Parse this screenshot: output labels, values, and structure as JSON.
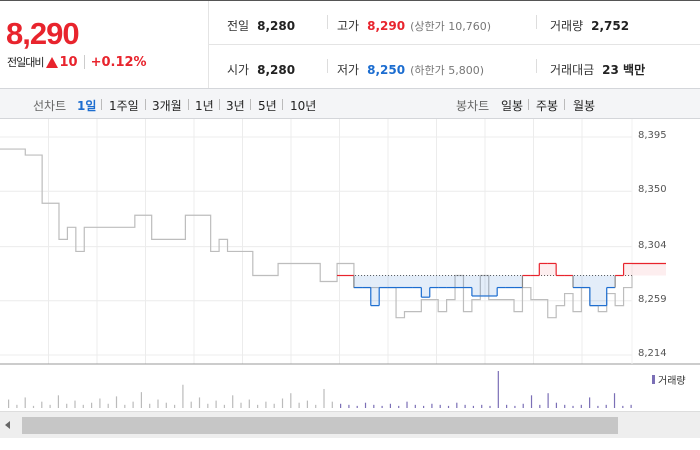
{
  "quote": {
    "price": "8,290",
    "change_label": "전일대비",
    "change_amount": "10",
    "change_percent": "+0.12%",
    "row1": [
      {
        "label": "전일",
        "value": "8,280",
        "sub": "",
        "tone": "normal"
      },
      {
        "label": "고가",
        "value": "8,290",
        "sub": "(상한가 10,760)",
        "tone": "up"
      },
      {
        "label": "거래량",
        "value": "2,752",
        "sub": "",
        "tone": "normal"
      }
    ],
    "row2": [
      {
        "label": "시가",
        "value": "8,280",
        "sub": "",
        "tone": "normal"
      },
      {
        "label": "저가",
        "value": "8,250",
        "sub": "(하한가 5,800)",
        "tone": "down"
      },
      {
        "label": "거래대금",
        "value": "23 백만",
        "sub": "",
        "tone": "normal"
      }
    ]
  },
  "line_chart_bar": {
    "label": "선차트",
    "items": [
      "1일",
      "1주일",
      "3개월",
      "1년",
      "3년",
      "5년",
      "10년"
    ],
    "active_index": 0
  },
  "candle_chart_bar": {
    "label": "봉차트",
    "items": [
      "일봉",
      "주봉",
      "월봉"
    ]
  },
  "colors": {
    "up": "#e8242d",
    "down": "#1c6dd0",
    "history_line": "#bdbdbd",
    "volume": "#7b6fb6"
  },
  "chart_data": {
    "type": "line",
    "reference_price": 8280,
    "y_ticks": [
      8395,
      8350,
      8304,
      8259,
      8214
    ],
    "ylim": [
      8214,
      8395
    ],
    "history_series": {
      "x": [
        0,
        1,
        2,
        3,
        4,
        5,
        6,
        7,
        8,
        9,
        10,
        11,
        12,
        13,
        14,
        15,
        16,
        17,
        18,
        19,
        20,
        21,
        22,
        23,
        24,
        25,
        26,
        27,
        28,
        29,
        30,
        31,
        32,
        33,
        34,
        35,
        36,
        37,
        38,
        39,
        40,
        41,
        42,
        43,
        44,
        45,
        46,
        47,
        48,
        49,
        50,
        51,
        52,
        53,
        54,
        55,
        56,
        57,
        58,
        59,
        60,
        61,
        62,
        63,
        64,
        65,
        66,
        67,
        68,
        69,
        70,
        71,
        72,
        73,
        74,
        75
      ],
      "y": [
        8385,
        8385,
        8385,
        8380,
        8380,
        8340,
        8340,
        8310,
        8320,
        8300,
        8320,
        8320,
        8320,
        8320,
        8320,
        8320,
        8330,
        8330,
        8310,
        8310,
        8310,
        8310,
        8330,
        8330,
        8330,
        8300,
        8310,
        8300,
        8300,
        8300,
        8280,
        8280,
        8280,
        8290,
        8290,
        8290,
        8290,
        8290,
        8275,
        8275,
        8290,
        8290,
        8270,
        8270,
        8270,
        8270,
        8270,
        8245,
        8250,
        8250,
        8260,
        8260,
        8250,
        8260,
        8280,
        8250,
        8260,
        8280,
        8260,
        8260,
        8260,
        8250,
        8270,
        8260,
        8260,
        8245,
        8255,
        8265,
        8250,
        8270,
        8255,
        8250,
        8265,
        8255,
        8270,
        8280
      ]
    },
    "today_series": {
      "x": [
        0,
        1,
        2,
        3,
        4,
        5,
        6,
        7,
        8,
        9,
        10,
        11,
        12,
        13,
        14,
        15,
        16,
        17,
        18,
        19,
        20,
        21,
        22,
        23,
        24,
        25,
        26,
        27,
        28,
        29,
        30,
        31,
        32,
        33,
        34,
        35,
        36,
        37,
        38,
        39,
        40,
        41,
        42,
        43,
        44,
        45,
        46,
        47,
        48,
        49,
        50,
        51,
        52,
        53,
        54,
        55,
        56,
        57,
        58,
        59,
        60,
        61,
        62,
        63,
        64,
        65,
        66,
        67,
        68,
        69,
        70,
        71,
        72,
        73,
        74,
        75
      ],
      "y": [
        null,
        null,
        null,
        null,
        null,
        null,
        null,
        null,
        null,
        null,
        null,
        null,
        null,
        null,
        null,
        null,
        null,
        null,
        null,
        null,
        null,
        null,
        null,
        null,
        null,
        null,
        null,
        null,
        null,
        null,
        null,
        null,
        null,
        null,
        null,
        null,
        null,
        null,
        null,
        null,
        8280,
        8280,
        8270,
        8270,
        8255,
        8270,
        8270,
        8270,
        8270,
        8270,
        8262,
        8270,
        8270,
        8270,
        8270,
        8270,
        8263,
        8263,
        8263,
        8270,
        8270,
        8270,
        8280,
        8280,
        8290,
        8290,
        8280,
        8280,
        8270,
        8270,
        8255,
        8255,
        8270,
        8280,
        8290,
        8290
      ]
    },
    "volume": [
      8,
      3,
      10,
      2,
      6,
      3,
      12,
      4,
      7,
      3,
      5,
      9,
      4,
      11,
      3,
      6,
      15,
      4,
      8,
      5,
      3,
      22,
      6,
      10,
      4,
      7,
      3,
      12,
      5,
      8,
      3,
      6,
      4,
      9,
      14,
      5,
      7,
      3,
      18,
      6,
      4,
      3,
      2,
      5,
      3,
      2,
      4,
      2,
      6,
      3,
      2,
      4,
      3,
      2,
      5,
      3,
      2,
      3,
      2,
      35,
      3,
      2,
      4,
      12,
      3,
      14,
      5,
      3,
      2,
      3,
      10,
      2,
      3,
      14,
      2,
      3
    ],
    "volume_label": "거래량"
  }
}
